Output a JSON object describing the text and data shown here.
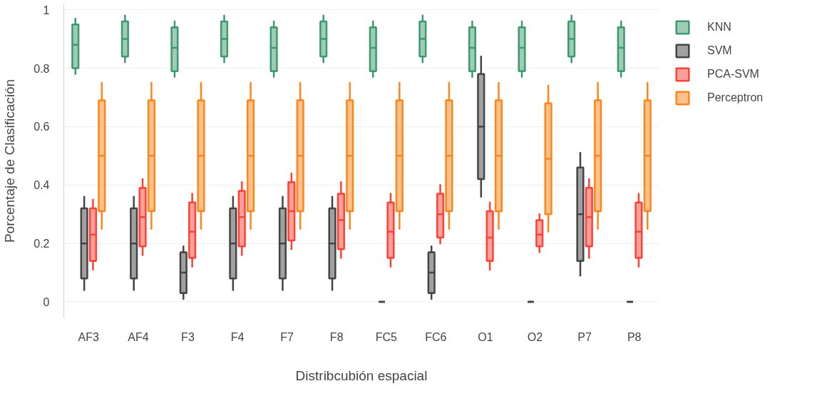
{
  "chart_data": {
    "type": "box",
    "xlabel": "Distribcubión espacial",
    "ylabel": "Porcentaje de Clasificación",
    "categories": [
      "AF3",
      "AF4",
      "F3",
      "F4",
      "F7",
      "F8",
      "FC5",
      "FC6",
      "O1",
      "O2",
      "P7",
      "P8"
    ],
    "ylim": [
      -0.055,
      1.02
    ],
    "yticks": [
      0,
      0.2,
      0.4,
      0.6,
      0.8,
      1
    ],
    "grid": "y",
    "legend": "top right",
    "series": [
      {
        "name": "KNN",
        "color": "#3d9970",
        "boxes": [
          {
            "low": 0.78,
            "q1": 0.8,
            "median": 0.88,
            "q3": 0.95,
            "high": 0.97
          },
          {
            "low": 0.82,
            "q1": 0.84,
            "median": 0.9,
            "q3": 0.96,
            "high": 0.98
          },
          {
            "low": 0.77,
            "q1": 0.79,
            "median": 0.87,
            "q3": 0.94,
            "high": 0.96
          },
          {
            "low": 0.82,
            "q1": 0.84,
            "median": 0.9,
            "q3": 0.96,
            "high": 0.98
          },
          {
            "low": 0.77,
            "q1": 0.79,
            "median": 0.87,
            "q3": 0.94,
            "high": 0.96
          },
          {
            "low": 0.82,
            "q1": 0.84,
            "median": 0.9,
            "q3": 0.96,
            "high": 0.98
          },
          {
            "low": 0.77,
            "q1": 0.79,
            "median": 0.87,
            "q3": 0.94,
            "high": 0.96
          },
          {
            "low": 0.82,
            "q1": 0.84,
            "median": 0.9,
            "q3": 0.96,
            "high": 0.98
          },
          {
            "low": 0.77,
            "q1": 0.79,
            "median": 0.87,
            "q3": 0.94,
            "high": 0.96
          },
          {
            "low": 0.77,
            "q1": 0.79,
            "median": 0.87,
            "q3": 0.94,
            "high": 0.96
          },
          {
            "low": 0.82,
            "q1": 0.84,
            "median": 0.9,
            "q3": 0.96,
            "high": 0.98
          },
          {
            "low": 0.77,
            "q1": 0.79,
            "median": 0.87,
            "q3": 0.94,
            "high": 0.96
          }
        ]
      },
      {
        "name": "SVM",
        "color": "#444444",
        "boxes": [
          {
            "low": 0.04,
            "q1": 0.08,
            "median": 0.2,
            "q3": 0.32,
            "high": 0.36
          },
          {
            "low": 0.04,
            "q1": 0.08,
            "median": 0.2,
            "q3": 0.32,
            "high": 0.36
          },
          {
            "low": 0.01,
            "q1": 0.03,
            "median": 0.1,
            "q3": 0.17,
            "high": 0.19
          },
          {
            "low": 0.04,
            "q1": 0.08,
            "median": 0.2,
            "q3": 0.32,
            "high": 0.36
          },
          {
            "low": 0.04,
            "q1": 0.08,
            "median": 0.2,
            "q3": 0.32,
            "high": 0.36
          },
          {
            "low": 0.04,
            "q1": 0.08,
            "median": 0.2,
            "q3": 0.32,
            "high": 0.36
          },
          {
            "low": 0,
            "q1": 0,
            "median": 0,
            "q3": 0,
            "high": 0
          },
          {
            "low": 0.01,
            "q1": 0.03,
            "median": 0.1,
            "q3": 0.17,
            "high": 0.19
          },
          {
            "low": 0.36,
            "q1": 0.42,
            "median": 0.6,
            "q3": 0.78,
            "high": 0.84
          },
          {
            "low": 0,
            "q1": 0,
            "median": 0,
            "q3": 0,
            "high": 0
          },
          {
            "low": 0.09,
            "q1": 0.14,
            "median": 0.3,
            "q3": 0.46,
            "high": 0.51
          },
          {
            "low": 0,
            "q1": 0,
            "median": 0,
            "q3": 0,
            "high": 0
          }
        ]
      },
      {
        "name": "PCA-SVM",
        "color": "#ff4136",
        "boxes": [
          {
            "low": 0.11,
            "q1": 0.14,
            "median": 0.23,
            "q3": 0.32,
            "high": 0.35
          },
          {
            "low": 0.16,
            "q1": 0.19,
            "median": 0.29,
            "q3": 0.39,
            "high": 0.42
          },
          {
            "low": 0.12,
            "q1": 0.15,
            "median": 0.24,
            "q3": 0.34,
            "high": 0.37
          },
          {
            "low": 0.16,
            "q1": 0.19,
            "median": 0.29,
            "q3": 0.38,
            "high": 0.41
          },
          {
            "low": 0.18,
            "q1": 0.21,
            "median": 0.31,
            "q3": 0.41,
            "high": 0.44
          },
          {
            "low": 0.15,
            "q1": 0.18,
            "median": 0.28,
            "q3": 0.37,
            "high": 0.41
          },
          {
            "low": 0.12,
            "q1": 0.15,
            "median": 0.24,
            "q3": 0.34,
            "high": 0.37
          },
          {
            "low": 0.2,
            "q1": 0.22,
            "median": 0.3,
            "q3": 0.37,
            "high": 0.4
          },
          {
            "low": 0.11,
            "q1": 0.14,
            "median": 0.22,
            "q3": 0.31,
            "high": 0.34
          },
          {
            "low": 0.17,
            "q1": 0.19,
            "median": 0.23,
            "q3": 0.28,
            "high": 0.3
          },
          {
            "low": 0.15,
            "q1": 0.19,
            "median": 0.29,
            "q3": 0.39,
            "high": 0.42
          },
          {
            "low": 0.12,
            "q1": 0.15,
            "median": 0.24,
            "q3": 0.34,
            "high": 0.37
          }
        ]
      },
      {
        "name": "Perceptron",
        "color": "#ff851b",
        "boxes": [
          {
            "low": 0.25,
            "q1": 0.31,
            "median": 0.5,
            "q3": 0.69,
            "high": 0.75
          },
          {
            "low": 0.25,
            "q1": 0.31,
            "median": 0.5,
            "q3": 0.69,
            "high": 0.75
          },
          {
            "low": 0.25,
            "q1": 0.31,
            "median": 0.5,
            "q3": 0.69,
            "high": 0.75
          },
          {
            "low": 0.25,
            "q1": 0.31,
            "median": 0.5,
            "q3": 0.69,
            "high": 0.75
          },
          {
            "low": 0.25,
            "q1": 0.31,
            "median": 0.5,
            "q3": 0.69,
            "high": 0.75
          },
          {
            "low": 0.25,
            "q1": 0.31,
            "median": 0.5,
            "q3": 0.69,
            "high": 0.75
          },
          {
            "low": 0.25,
            "q1": 0.31,
            "median": 0.5,
            "q3": 0.69,
            "high": 0.75
          },
          {
            "low": 0.25,
            "q1": 0.31,
            "median": 0.5,
            "q3": 0.69,
            "high": 0.75
          },
          {
            "low": 0.25,
            "q1": 0.31,
            "median": 0.5,
            "q3": 0.69,
            "high": 0.75
          },
          {
            "low": 0.24,
            "q1": 0.3,
            "median": 0.49,
            "q3": 0.68,
            "high": 0.74
          },
          {
            "low": 0.25,
            "q1": 0.31,
            "median": 0.5,
            "q3": 0.69,
            "high": 0.75
          },
          {
            "low": 0.25,
            "q1": 0.31,
            "median": 0.5,
            "q3": 0.69,
            "high": 0.75
          }
        ]
      }
    ]
  }
}
